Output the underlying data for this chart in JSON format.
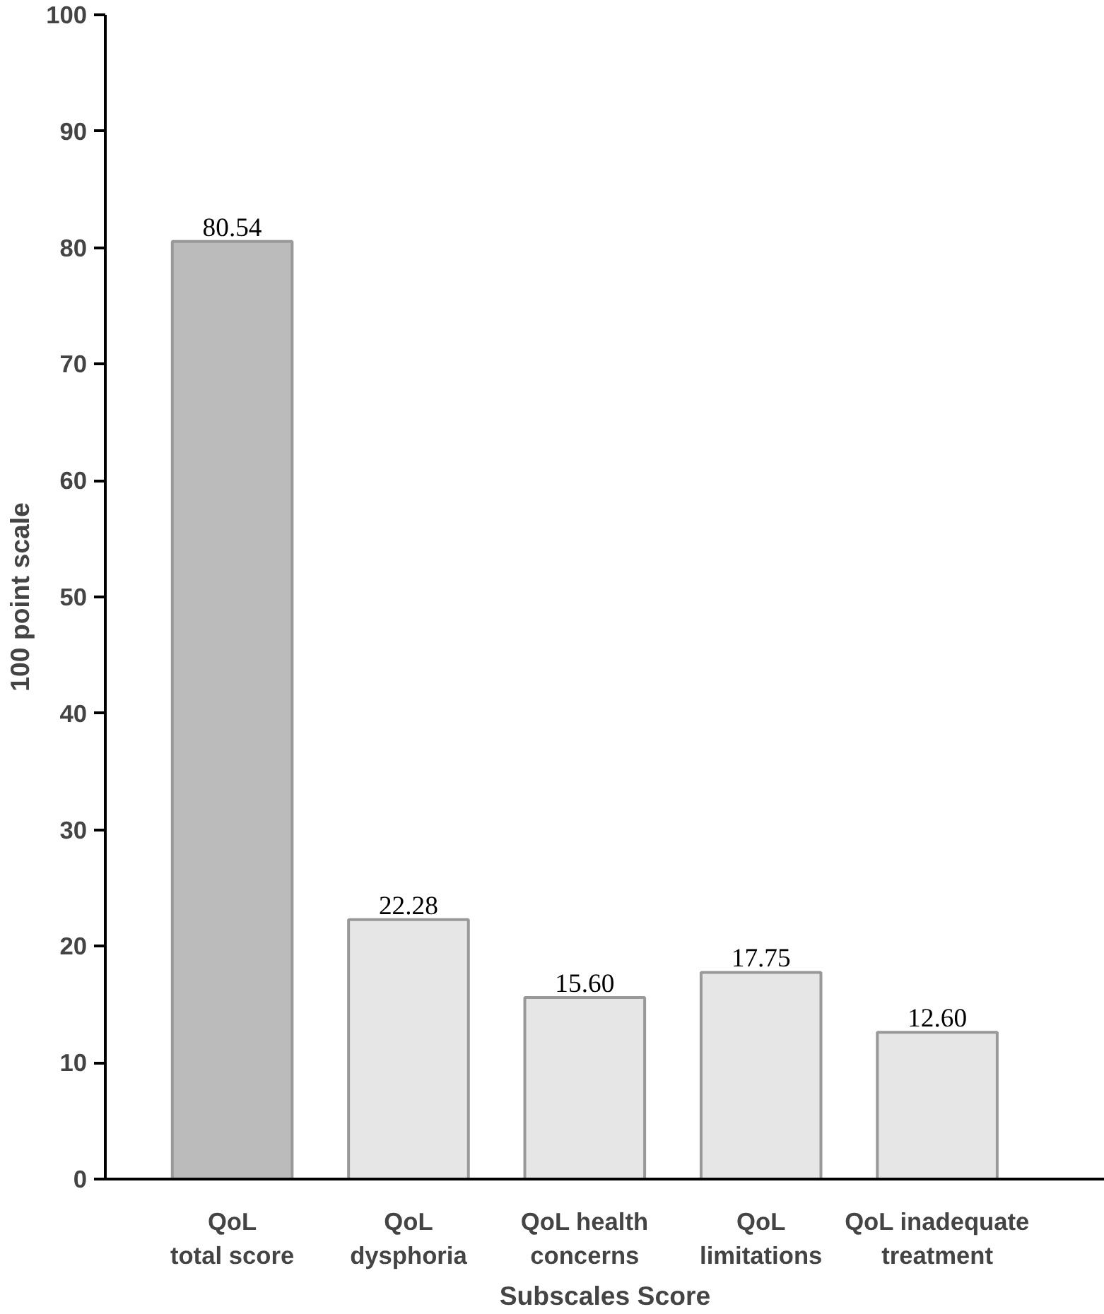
{
  "chart_data": {
    "type": "bar",
    "categories": [
      "QoL\ntotal score",
      "QoL\ndysphoria",
      "QoL health\nconcerns",
      "QoL\nlimitations",
      "QoL inadequate\ntreatment"
    ],
    "values": [
      80.54,
      22.28,
      15.6,
      17.75,
      12.6
    ],
    "value_labels": [
      "80.54",
      "22.28",
      "15.60",
      "17.75",
      "12.60"
    ],
    "colors": [
      "#bbbbbb",
      "#e6e6e6",
      "#e6e6e6",
      "#e6e6e6",
      "#e6e6e6"
    ],
    "ylabel": "100 point scale",
    "xlabel": "Subscales Score",
    "ylim": [
      0,
      100
    ],
    "yticks": [
      0,
      10,
      20,
      30,
      40,
      50,
      60,
      70,
      80,
      90,
      100
    ],
    "grid": false
  }
}
